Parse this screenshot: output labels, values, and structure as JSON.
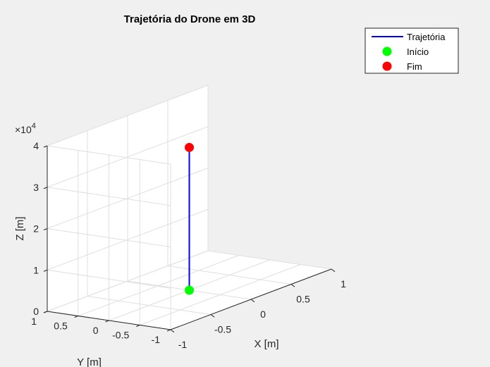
{
  "chart_data": {
    "type": "line3d",
    "title": "Trajetória do Drone em 3D",
    "xlabel": "X [m]",
    "ylabel": "Y [m]",
    "zlabel": "Z [m]",
    "xlim": [
      -1,
      1
    ],
    "ylim": [
      -1,
      1
    ],
    "zlim": [
      0,
      40000
    ],
    "xticks": [
      -1,
      -0.5,
      0,
      0.5,
      1
    ],
    "yticks": [
      -1,
      -0.5,
      0,
      0.5,
      1
    ],
    "zticks": [
      0,
      10000,
      20000,
      30000,
      40000
    ],
    "xtick_labels": [
      "-1",
      "-0.5",
      "0",
      "0.5",
      "1"
    ],
    "ytick_labels": [
      "-1",
      "-0.5",
      "0",
      "0.5",
      "1"
    ],
    "ztick_labels": [
      "0",
      "1",
      "2",
      "3",
      "4"
    ],
    "z_exponent": {
      "base": "×10",
      "power": "4"
    },
    "grid": true,
    "series": [
      {
        "name": "Trajetória",
        "kind": "line",
        "color": "#0000ff",
        "x": [
          0,
          0
        ],
        "y": [
          0,
          0
        ],
        "z": [
          0,
          34500
        ]
      },
      {
        "name": "Início",
        "kind": "marker",
        "color": "#00ff00",
        "x": [
          0
        ],
        "y": [
          0
        ],
        "z": [
          0
        ]
      },
      {
        "name": "Fim",
        "kind": "marker",
        "color": "#ff0000",
        "x": [
          0
        ],
        "y": [
          0
        ],
        "z": [
          34500
        ]
      }
    ],
    "legend": {
      "position": "top-right",
      "entries": [
        "Trajetória",
        "Início",
        "Fim"
      ]
    },
    "colors": {
      "background": "#f0f0f0",
      "axes_face": "#ffffff",
      "grid": "#dfdfdf",
      "axis": "#262626",
      "text": "#262626"
    }
  }
}
